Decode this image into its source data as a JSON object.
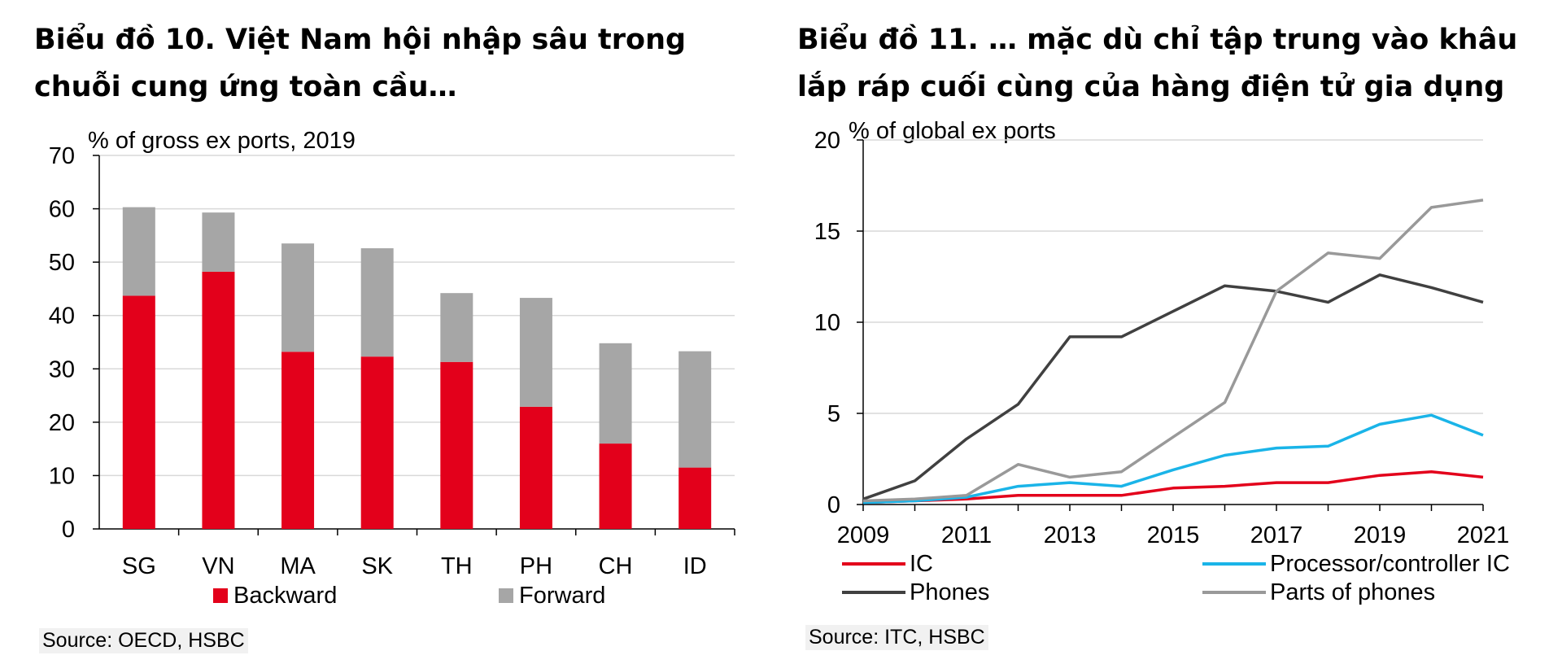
{
  "chart_data": [
    {
      "type": "bar",
      "stacked": true,
      "title": "Biểu đồ 10. Việt Nam hội nhập sâu trong chuỗi cung ứng toàn cầu…",
      "unit_label": "% of gross ex ports, 2019",
      "categories": [
        "SG",
        "VN",
        "MA",
        "SK",
        "TH",
        "PH",
        "CH",
        "ID"
      ],
      "series": [
        {
          "name": "Backward",
          "color": "#e3001b",
          "values": [
            43.7,
            48.2,
            33.2,
            32.3,
            31.3,
            22.9,
            16.0,
            11.5
          ]
        },
        {
          "name": "Forward",
          "color": "#a6a6a6",
          "values": [
            16.6,
            11.1,
            20.3,
            20.3,
            12.9,
            20.4,
            18.8,
            21.8
          ]
        }
      ],
      "ylim": [
        0,
        70
      ],
      "yticks": [
        0,
        10,
        20,
        30,
        40,
        50,
        60,
        70
      ],
      "grid": true,
      "legend": "bottom",
      "source": "Source: OECD, HSBC"
    },
    {
      "type": "line",
      "title": "Biểu đồ 11. … mặc dù chỉ tập trung vào khâu lắp ráp cuối cùng của hàng điện tử gia dụng",
      "unit_label": "% of global ex ports",
      "x": [
        2009,
        2010,
        2011,
        2012,
        2013,
        2014,
        2015,
        2016,
        2017,
        2018,
        2019,
        2020,
        2021
      ],
      "xticks": [
        "2009",
        "2011",
        "2013",
        "2015",
        "2017",
        "2019",
        "2021"
      ],
      "series": [
        {
          "name": "IC",
          "color": "#e3001b",
          "values": [
            0.1,
            0.2,
            0.3,
            0.5,
            0.5,
            0.5,
            0.9,
            1.0,
            1.2,
            1.2,
            1.6,
            1.8,
            1.5
          ]
        },
        {
          "name": "Processor/controller IC",
          "color": "#1ab4e8",
          "values": [
            0.1,
            0.2,
            0.4,
            1.0,
            1.2,
            1.0,
            1.9,
            2.7,
            3.1,
            3.2,
            4.4,
            4.9,
            3.8
          ]
        },
        {
          "name": "Phones",
          "color": "#404040",
          "values": [
            0.3,
            1.3,
            3.6,
            5.5,
            9.2,
            9.2,
            10.6,
            12.0,
            11.7,
            11.1,
            12.6,
            11.9,
            11.1
          ]
        },
        {
          "name": "Parts of phones",
          "color": "#999999",
          "values": [
            0.2,
            0.3,
            0.5,
            2.2,
            1.5,
            1.8,
            3.7,
            5.6,
            11.7,
            13.8,
            13.5,
            16.3,
            16.7
          ]
        }
      ],
      "ylim": [
        0,
        20
      ],
      "yticks": [
        0,
        5,
        10,
        15,
        20
      ],
      "grid": true,
      "legend": "bottom",
      "source": "Source: ITC, HSBC"
    }
  ]
}
